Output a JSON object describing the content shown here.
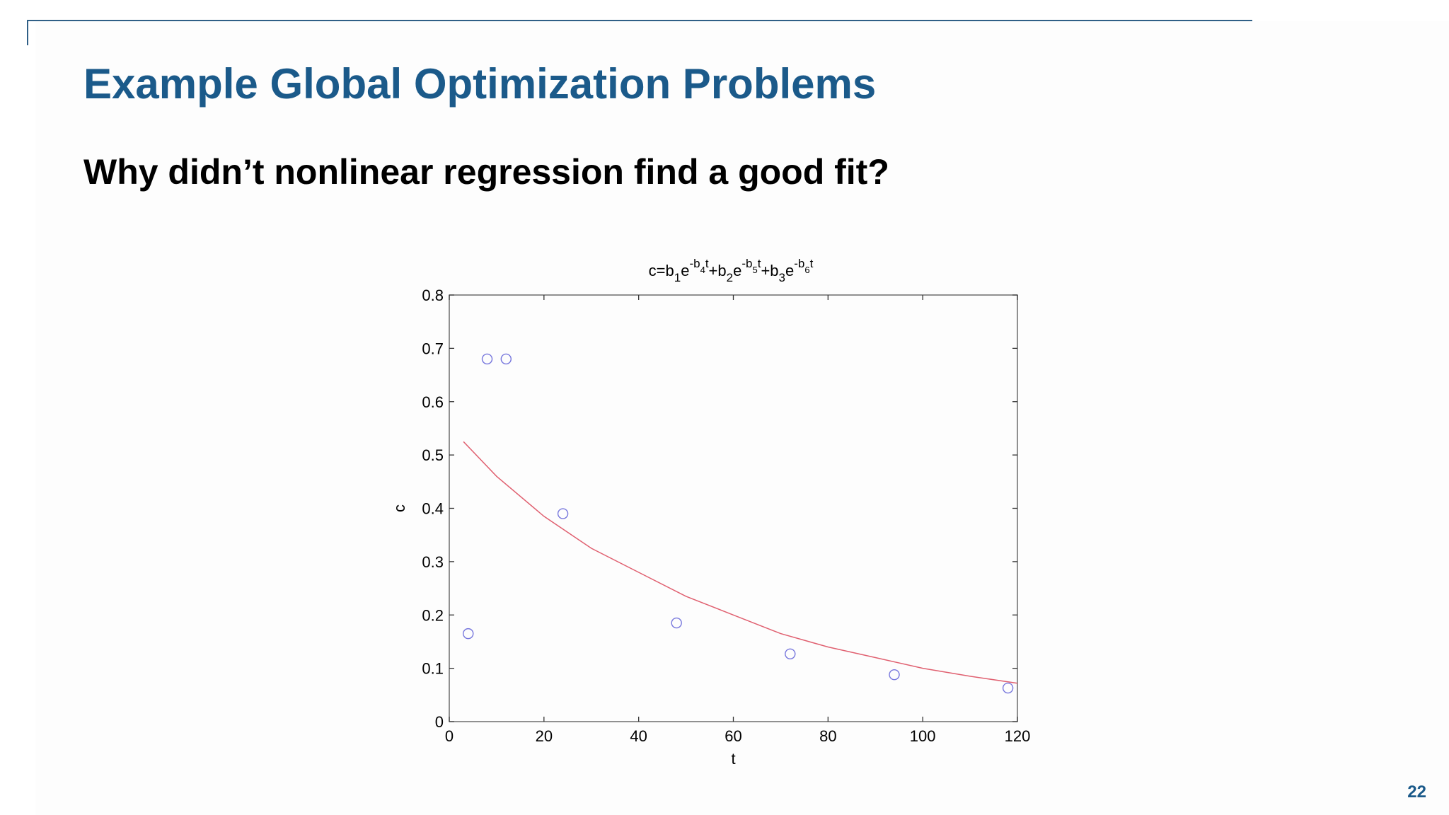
{
  "slide": {
    "title": "Example Global Optimization Problems",
    "subtitle": "Why didn’t nonlinear regression find a good fit?",
    "page_number": "22"
  },
  "colors": {
    "title": "#1b5a8a",
    "rule": "#2f5f86",
    "data_markers": "#7777dd",
    "fit_line": "#e06070"
  },
  "chart_data": {
    "type": "scatter",
    "title": "c=b1e-b4t+b2e-b5t+b3e-b6t",
    "xlabel": "t",
    "ylabel": "c",
    "xlim": [
      0,
      120
    ],
    "ylim": [
      0,
      0.8
    ],
    "xticks": [
      0,
      20,
      40,
      60,
      80,
      100,
      120
    ],
    "yticks": [
      0,
      0.1,
      0.2,
      0.3,
      0.4,
      0.5,
      0.6,
      0.7,
      0.8
    ],
    "grid": false,
    "series": [
      {
        "type": "scatter",
        "marker": "circle-open",
        "x": [
          4,
          8,
          12,
          24,
          48,
          72,
          94,
          118
        ],
        "y": [
          0.165,
          0.68,
          0.68,
          0.39,
          0.185,
          0.127,
          0.088,
          0.063
        ]
      },
      {
        "type": "line",
        "x": [
          3,
          10,
          20,
          30,
          40,
          50,
          60,
          70,
          80,
          90,
          100,
          110,
          120
        ],
        "y": [
          0.525,
          0.46,
          0.385,
          0.325,
          0.28,
          0.235,
          0.2,
          0.165,
          0.14,
          0.12,
          0.1,
          0.085,
          0.072
        ]
      }
    ]
  }
}
